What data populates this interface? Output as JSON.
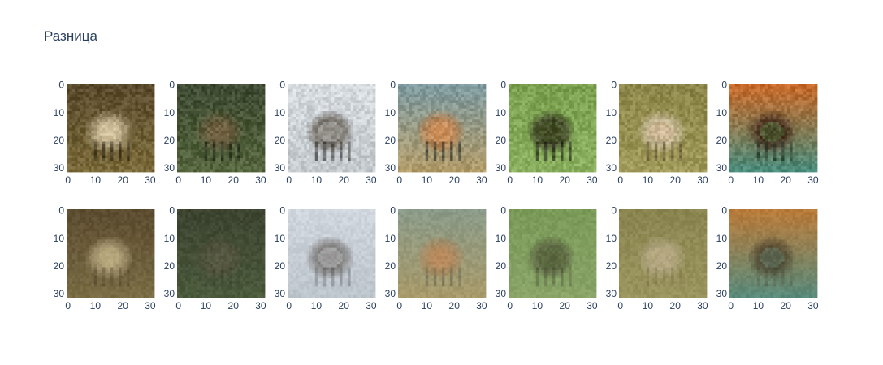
{
  "title": "Разница",
  "chart_data": {
    "type": "heatmap",
    "title": "Разница",
    "rows": 2,
    "cols": 7,
    "image_size": [
      32,
      32
    ],
    "xlim": [
      0,
      31
    ],
    "ylim": [
      31,
      0
    ],
    "x_ticks": [
      0,
      10,
      20,
      30
    ],
    "y_ticks": [
      0,
      10,
      20,
      30
    ],
    "panels": [
      {
        "row": 0,
        "col": 0,
        "palette": {
          "bg1": "#5a4a2c",
          "bg2": "#7a6a3a",
          "fg": "#cfc0a0",
          "dark": "#2a2418",
          "accent": "#d9c79a"
        }
      },
      {
        "row": 0,
        "col": 1,
        "palette": {
          "bg1": "#3e4a32",
          "bg2": "#56663e",
          "fg": "#6a5a3c",
          "dark": "#1e2418",
          "accent": "#7a6a4a"
        }
      },
      {
        "row": 0,
        "col": 2,
        "palette": {
          "bg1": "#d6dbe0",
          "bg2": "#c2c8cc",
          "fg": "#5a5246",
          "dark": "#2e2a26",
          "accent": "#e8ecef"
        }
      },
      {
        "row": 0,
        "col": 3,
        "palette": {
          "bg1": "#7e9aa0",
          "bg2": "#b09a68",
          "fg": "#c07840",
          "dark": "#1c1e20",
          "accent": "#e0b080"
        }
      },
      {
        "row": 0,
        "col": 4,
        "palette": {
          "bg1": "#7aa050",
          "bg2": "#8ab060",
          "fg": "#2a2418",
          "dark": "#14120e",
          "accent": "#6a8a3c"
        }
      },
      {
        "row": 0,
        "col": 5,
        "palette": {
          "bg1": "#8a8448",
          "bg2": "#a09a5a",
          "fg": "#d8c8b0",
          "dark": "#5a4a30",
          "accent": "#c0a070"
        }
      },
      {
        "row": 0,
        "col": 6,
        "palette": {
          "bg1": "#c86a2a",
          "bg2": "#4a8a7a",
          "fg": "#3a1e14",
          "dark": "#1e2a1e",
          "accent": "#6aa85a"
        }
      },
      {
        "row": 1,
        "col": 0,
        "palette": {
          "bg1": "#5c4c30",
          "bg2": "#7a6c44",
          "fg": "#d8c8a0",
          "dark": "#302618",
          "accent": "#b8a878"
        }
      },
      {
        "row": 1,
        "col": 1,
        "palette": {
          "bg1": "#3c4430",
          "bg2": "#4c5a3c",
          "fg": "#5c5440",
          "dark": "#2a2e22",
          "accent": "#58604a"
        }
      },
      {
        "row": 1,
        "col": 2,
        "palette": {
          "bg1": "#d0d6de",
          "bg2": "#bcc4cc",
          "fg": "#4a4238",
          "dark": "#262420",
          "accent": "#e4e8ee"
        }
      },
      {
        "row": 1,
        "col": 3,
        "palette": {
          "bg1": "#8a9a88",
          "bg2": "#a89a6a",
          "fg": "#b87848",
          "dark": "#1e2426",
          "accent": "#c89868"
        }
      },
      {
        "row": 1,
        "col": 4,
        "palette": {
          "bg1": "#7a9a58",
          "bg2": "#8aa468",
          "fg": "#3a3428",
          "dark": "#24221c",
          "accent": "#6a8448"
        }
      },
      {
        "row": 1,
        "col": 5,
        "palette": {
          "bg1": "#8a8450",
          "bg2": "#9a945e",
          "fg": "#c8baa0",
          "dark": "#6a5c3e",
          "accent": "#b0a070"
        }
      },
      {
        "row": 1,
        "col": 6,
        "palette": {
          "bg1": "#b87a3a",
          "bg2": "#5a8a7a",
          "fg": "#2e2418",
          "dark": "#3a3a2a",
          "accent": "#7aa08a"
        }
      }
    ]
  }
}
